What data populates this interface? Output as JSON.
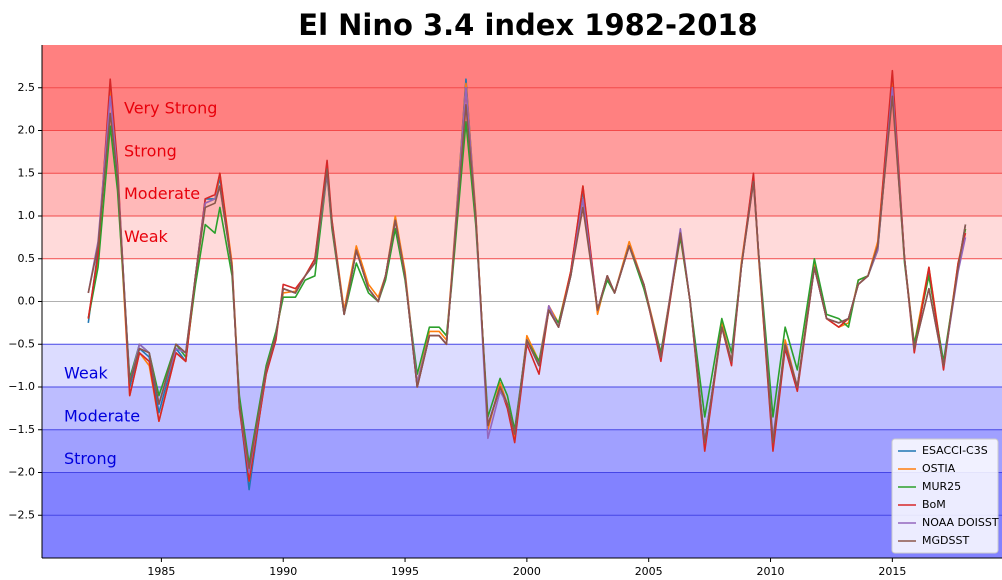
{
  "chart_data": {
    "type": "line",
    "title": "El Nino 3.4 index 1982-2018",
    "xlim": [
      1980.1,
      2019.5
    ],
    "ylim": [
      -3.0,
      3.0
    ],
    "xticks": [
      1985,
      1990,
      1995,
      2000,
      2005,
      2010,
      2015
    ],
    "yticks": [
      {
        "value": -2.5,
        "label": "−2.5"
      },
      {
        "value": -2.0,
        "label": "−2.0"
      },
      {
        "value": -1.5,
        "label": "−1.5"
      },
      {
        "value": -1.0,
        "label": "−1.0"
      },
      {
        "value": -0.5,
        "label": "−0.5"
      },
      {
        "value": 0,
        "label": "0.0"
      },
      0.5,
      {
        "value": 1,
        "label": "1.0"
      },
      1.5,
      {
        "value": 2,
        "label": "2.0"
      },
      2.5
    ],
    "grid": true,
    "legend": "lower right",
    "bands": [
      {
        "from": 2.0,
        "to": 3.0,
        "label": "Very Strong",
        "color": "#ff8080",
        "text_color": "#e8000b"
      },
      {
        "from": 1.5,
        "to": 2.0,
        "label": "Strong",
        "color": "#ff9d9d",
        "text_color": "#e8000b"
      },
      {
        "from": 1.0,
        "to": 1.5,
        "label": "Moderate",
        "color": "#ffb8b8",
        "text_color": "#e8000b"
      },
      {
        "from": 0.5,
        "to": 1.0,
        "label": "Weak",
        "color": "#ffdada",
        "text_color": "#e8000b"
      },
      {
        "from": -1.0,
        "to": -0.5,
        "label": "Weak",
        "color": "#dcdcff",
        "text_color": "#0000dd"
      },
      {
        "from": -1.5,
        "to": -1.0,
        "label": "Moderate",
        "color": "#bdbdff",
        "text_color": "#0000dd"
      },
      {
        "from": -2.0,
        "to": -1.5,
        "label": "Strong",
        "color": "#a0a0ff",
        "text_color": "#0000dd"
      },
      {
        "from": -3.0,
        "to": -2.0,
        "color": "#8282ff"
      }
    ],
    "x": [
      1982.0,
      1982.4,
      1982.9,
      1983.2,
      1983.7,
      1984.1,
      1984.5,
      1984.9,
      1985.6,
      1986.0,
      1986.4,
      1986.8,
      1987.2,
      1987.4,
      1987.9,
      1988.2,
      1988.6,
      1989.3,
      1989.7,
      1990.0,
      1990.5,
      1990.9,
      1991.3,
      1991.8,
      1992.0,
      1992.5,
      1993.0,
      1993.5,
      1993.9,
      1994.2,
      1994.6,
      1995.0,
      1995.5,
      1996.0,
      1996.4,
      1996.7,
      1996.9,
      1997.5,
      1997.9,
      1998.4,
      1998.9,
      1999.2,
      1999.5,
      2000.0,
      2000.5,
      2000.9,
      2001.3,
      2001.8,
      2002.3,
      2002.9,
      2003.3,
      2003.6,
      2004.2,
      2004.8,
      2005.5,
      2006.3,
      2006.7,
      2007.3,
      2008.0,
      2008.4,
      2008.8,
      2009.3,
      2009.5,
      2010.1,
      2010.6,
      2011.1,
      2011.8,
      2012.3,
      2012.8,
      2013.2,
      2013.6,
      2014.0,
      2014.4,
      2015.0,
      2015.5,
      2015.9,
      2016.5,
      2017.1,
      2017.7,
      2018.0
    ],
    "series": [
      {
        "name": "ESACCI-C3S",
        "color": "#1f77b4",
        "values": [
          -0.25,
          0.6,
          2.5,
          1.5,
          -1.0,
          -0.55,
          -0.65,
          -1.3,
          -0.55,
          -0.7,
          0.3,
          1.2,
          1.2,
          1.45,
          0.4,
          -1.2,
          -2.2,
          -0.8,
          -0.4,
          0.15,
          0.1,
          0.3,
          0.45,
          1.6,
          0.9,
          -0.15,
          0.6,
          0.15,
          0.0,
          0.3,
          0.95,
          0.3,
          -1.0,
          -0.4,
          -0.4,
          -0.5,
          0.2,
          2.6,
          1.0,
          -1.45,
          -1.0,
          -1.2,
          -1.55,
          -0.45,
          -0.75,
          -0.1,
          -0.3,
          0.3,
          1.3,
          -0.1,
          0.3,
          0.1,
          0.65,
          0.2,
          -0.65,
          0.8,
          0.0,
          -1.65,
          -0.3,
          -0.7,
          0.4,
          1.45,
          0.6,
          -1.65,
          -0.5,
          -1.0,
          0.4,
          -0.2,
          -0.25,
          -0.2,
          0.2,
          0.3,
          0.65,
          2.6,
          0.5,
          -0.55,
          0.35,
          -0.75,
          0.4,
          0.9
        ]
      },
      {
        "name": "OSTIA",
        "color": "#ff7f0e",
        "values": [
          -0.2,
          0.5,
          2.5,
          1.4,
          -1.1,
          -0.6,
          -0.75,
          -1.4,
          -0.6,
          -0.7,
          0.25,
          1.15,
          1.2,
          1.5,
          0.45,
          -1.15,
          -2.1,
          -0.85,
          -0.4,
          0.1,
          0.12,
          0.3,
          0.5,
          1.55,
          0.95,
          -0.1,
          0.65,
          0.2,
          0.05,
          0.3,
          1.0,
          0.35,
          -0.95,
          -0.35,
          -0.35,
          -0.45,
          0.25,
          2.55,
          1.05,
          -1.5,
          -0.95,
          -1.2,
          -1.6,
          -0.4,
          -0.7,
          -0.05,
          -0.25,
          0.35,
          1.35,
          -0.15,
          0.3,
          0.1,
          0.7,
          0.2,
          -0.6,
          0.8,
          0.0,
          -1.7,
          -0.25,
          -0.7,
          0.45,
          1.45,
          0.55,
          -1.7,
          -0.45,
          -1.0,
          0.45,
          -0.2,
          -0.3,
          -0.25,
          0.25,
          0.3,
          0.7,
          2.65,
          0.5,
          -0.5,
          0.4,
          -0.75,
          0.45,
          0.85
        ]
      },
      {
        "name": "MUR25",
        "color": "#2ca02c",
        "values": [
          -0.2,
          0.4,
          2.05,
          1.3,
          -0.9,
          -0.5,
          -0.6,
          -1.1,
          -0.5,
          -0.65,
          0.2,
          0.9,
          0.8,
          1.1,
          0.3,
          -1.1,
          -1.9,
          -0.75,
          -0.35,
          0.05,
          0.05,
          0.25,
          0.3,
          1.5,
          0.85,
          -0.15,
          0.45,
          0.1,
          0.0,
          0.25,
          0.85,
          0.25,
          -0.85,
          -0.3,
          -0.3,
          -0.4,
          0.15,
          2.1,
          0.9,
          -1.35,
          -0.9,
          -1.1,
          -1.5,
          -0.45,
          -0.7,
          -0.1,
          -0.25,
          0.3,
          1.2,
          -0.1,
          0.25,
          0.1,
          0.65,
          0.15,
          -0.6,
          0.75,
          0.0,
          -1.35,
          -0.2,
          -0.6,
          0.4,
          1.45,
          0.6,
          -1.35,
          -0.3,
          -0.8,
          0.5,
          -0.15,
          -0.2,
          -0.3,
          0.25,
          0.3,
          0.6,
          2.5,
          0.45,
          -0.5,
          0.3,
          -0.7,
          0.4,
          0.85
        ]
      },
      {
        "name": "BoM",
        "color": "#d62728",
        "values": [
          -0.2,
          0.55,
          2.6,
          1.6,
          -1.1,
          -0.6,
          -0.7,
          -1.4,
          -0.6,
          -0.7,
          0.3,
          1.2,
          1.25,
          1.5,
          0.4,
          -1.25,
          -2.1,
          -0.85,
          -0.45,
          0.2,
          0.15,
          0.3,
          0.5,
          1.65,
          0.95,
          -0.15,
          0.6,
          0.15,
          0.0,
          0.3,
          0.95,
          0.3,
          -1.0,
          -0.4,
          -0.4,
          -0.5,
          0.2,
          2.5,
          1.0,
          -1.45,
          -1.0,
          -1.25,
          -1.65,
          -0.5,
          -0.85,
          -0.1,
          -0.3,
          0.35,
          1.35,
          -0.1,
          0.3,
          0.1,
          0.65,
          0.2,
          -0.7,
          0.8,
          0.0,
          -1.75,
          -0.3,
          -0.75,
          0.4,
          1.5,
          0.6,
          -1.75,
          -0.55,
          -1.05,
          0.4,
          -0.2,
          -0.3,
          -0.2,
          0.2,
          0.3,
          0.65,
          2.7,
          0.5,
          -0.6,
          0.4,
          -0.8,
          0.45,
          0.8
        ]
      },
      {
        "name": "NOAA DOISST",
        "color": "#9467bd",
        "values": [
          0.1,
          0.7,
          2.4,
          1.5,
          -0.95,
          -0.5,
          -0.6,
          -1.2,
          -0.55,
          -0.6,
          0.3,
          1.15,
          1.2,
          1.35,
          0.4,
          -1.2,
          -2.0,
          -0.8,
          -0.4,
          0.15,
          0.1,
          0.3,
          0.45,
          1.5,
          0.9,
          -0.15,
          0.6,
          0.15,
          0.0,
          0.3,
          0.95,
          0.3,
          -0.95,
          -0.4,
          -0.4,
          -0.5,
          0.2,
          2.5,
          1.0,
          -1.6,
          -1.05,
          -1.2,
          -1.55,
          -0.45,
          -0.75,
          -0.05,
          -0.3,
          0.3,
          1.2,
          -0.1,
          0.3,
          0.1,
          0.65,
          0.2,
          -0.65,
          0.85,
          0.0,
          -1.65,
          -0.3,
          -0.7,
          0.4,
          1.4,
          0.6,
          -1.6,
          -0.5,
          -1.0,
          0.4,
          -0.2,
          -0.25,
          -0.2,
          0.2,
          0.3,
          0.6,
          2.5,
          0.5,
          -0.55,
          0.15,
          -0.75,
          0.35,
          0.75
        ]
      },
      {
        "name": "MGDSST",
        "color": "#8c564b",
        "values": [
          0.1,
          0.65,
          2.2,
          1.45,
          -0.95,
          -0.55,
          -0.6,
          -1.2,
          -0.5,
          -0.6,
          0.3,
          1.1,
          1.15,
          1.35,
          0.4,
          -1.2,
          -1.95,
          -0.8,
          -0.4,
          0.15,
          0.1,
          0.3,
          0.45,
          1.55,
          0.9,
          -0.15,
          0.6,
          0.15,
          0.0,
          0.3,
          0.95,
          0.3,
          -1.0,
          -0.4,
          -0.4,
          -0.5,
          0.2,
          2.3,
          1.0,
          -1.45,
          -1.0,
          -1.2,
          -1.55,
          -0.45,
          -0.75,
          -0.1,
          -0.3,
          0.3,
          1.1,
          -0.1,
          0.3,
          0.1,
          0.65,
          0.2,
          -0.65,
          0.8,
          0.0,
          -1.65,
          -0.3,
          -0.7,
          0.4,
          1.4,
          0.6,
          -1.65,
          -0.5,
          -1.0,
          0.4,
          -0.2,
          -0.25,
          -0.2,
          0.2,
          0.3,
          0.65,
          2.4,
          0.5,
          -0.55,
          0.15,
          -0.75,
          0.4,
          0.9
        ]
      }
    ]
  }
}
